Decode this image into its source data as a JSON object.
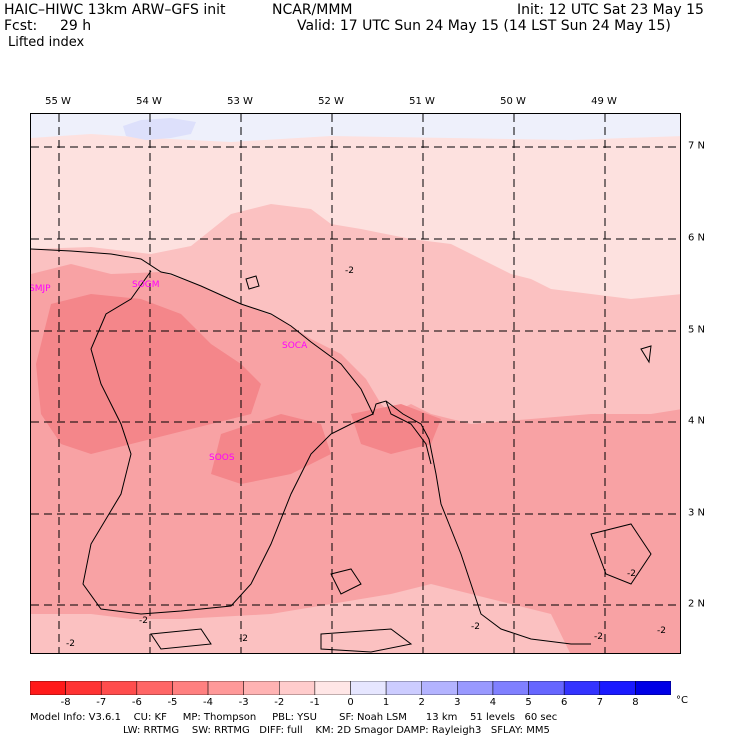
{
  "header": {
    "model": "HAIC–HIWC 13km ARW–GFS init",
    "center": "NCAR/MMM",
    "init": "Init: 12 UTC Sat 23 May 15",
    "fcst_label": "Fcst:",
    "fcst_value": "29 h",
    "valid": "Valid: 17 UTC Sun 24 May 15 (14 LST Sun 24 May 15)",
    "field": "Lifted index"
  },
  "map": {
    "longitude_labels": [
      "55 W",
      "54 W",
      "53 W",
      "52 W",
      "51 W",
      "50 W",
      "49 W"
    ],
    "latitude_labels": [
      "7 N",
      "6 N",
      "5 N",
      "4 N",
      "3 N",
      "2 N"
    ],
    "stations": [
      "SMJP",
      "SOGM",
      "SOCA",
      "SOOS"
    ],
    "contour_labels": [
      "-2",
      "-2",
      "-2",
      "-2",
      "-2",
      "-2",
      "-2",
      "-2"
    ]
  },
  "colorbar": {
    "labels": [
      "-8",
      "-7",
      "-6",
      "-5",
      "-4",
      "-3",
      "-2",
      "-1",
      "0",
      "1",
      "2",
      "3",
      "4",
      "5",
      "6",
      "7",
      "8"
    ],
    "unit": "°C",
    "colors": [
      "#ff1a1a",
      "#ff3333",
      "#ff4d4d",
      "#ff6666",
      "#ff8080",
      "#ff9999",
      "#ffb3b3",
      "#ffcccc",
      "#ffe6e6",
      "#e6e6ff",
      "#ccccff",
      "#b3b3ff",
      "#9999ff",
      "#8080ff",
      "#6666ff",
      "#3333ff",
      "#1a1aff",
      "#0000e6"
    ]
  },
  "footer": {
    "line1": "Model Info: V3.6.1    CU: KF     MP: Thompson     PBL: YSU       SF: Noah LSM      13 km    51 levels   60 sec",
    "line2": "LW: RRTMG    SW: RRTMG   DIFF: full    KM: 2D Smagor DAMP: Rayleigh3   SFLAY: MM5"
  },
  "colors": {
    "li_minus4": "#f4868a",
    "li_minus3": "#f8a2a4",
    "li_minus2": "#fbc1c1",
    "li_minus1": "#fde1df",
    "li_pos1": "#dde0fb",
    "station": "#ff00ff"
  }
}
